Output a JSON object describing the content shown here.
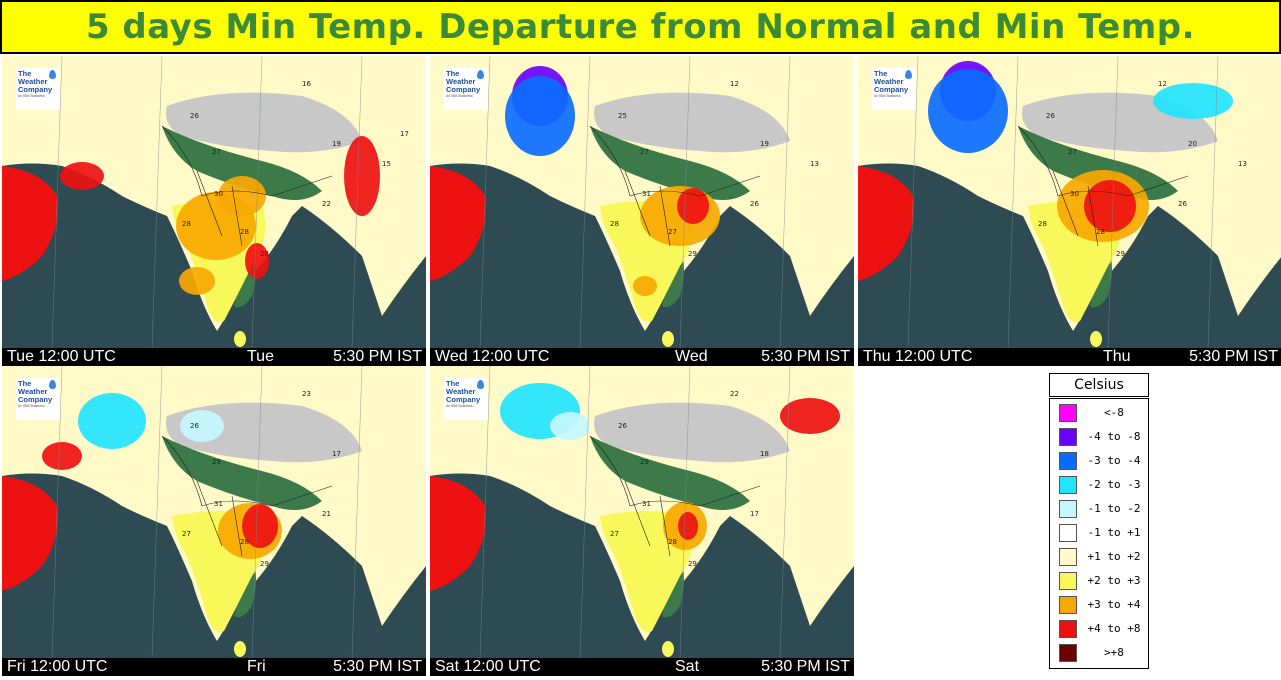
{
  "title": "5 days Min Temp. Departure from Normal and Min Temp.",
  "logo": {
    "line1": "The",
    "line2": "Weather",
    "line3": "Company",
    "sub": "An IBM Business"
  },
  "colors": {
    "title_bg": "#ffff00",
    "title_text": "#3a8a3a",
    "sea": "#2e4a52",
    "land_green": "#3d7a4a",
    "snow": "#c8c8c8"
  },
  "panels": [
    {
      "utc_label": "Tue  12:00 UTC",
      "day_label": "Tue",
      "ist_label": "5:30 PM IST",
      "map_values": [
        "26",
        "27",
        "30",
        "28",
        "28",
        "28",
        "22",
        "19",
        "16",
        "15",
        "17"
      ]
    },
    {
      "utc_label": "Wed 12:00 UTC",
      "day_label": "Wed",
      "ist_label": "5:30 PM IST",
      "map_values": [
        "25",
        "27",
        "31",
        "28",
        "27",
        "29",
        "26",
        "19",
        "12",
        "13"
      ]
    },
    {
      "utc_label": "Thu  12:00 UTC",
      "day_label": "Thu",
      "ist_label": "5:30 PM IST",
      "map_values": [
        "26",
        "27",
        "30",
        "28",
        "28",
        "29",
        "26",
        "20",
        "12",
        "13"
      ]
    },
    {
      "utc_label": "Fri  12:00 UTC",
      "day_label": "Fri",
      "ist_label": "5:30 PM IST",
      "map_values": [
        "26",
        "29",
        "31",
        "27",
        "28",
        "29",
        "21",
        "17",
        "23"
      ]
    },
    {
      "utc_label": "Sat  12:00 UTC",
      "day_label": "Sat",
      "ist_label": "5:30 PM IST",
      "map_values": [
        "26",
        "29",
        "31",
        "27",
        "28",
        "29",
        "17",
        "18",
        "22"
      ]
    }
  ],
  "legend": {
    "title": "Celsius",
    "items": [
      {
        "label": "<-8",
        "color": "#ff00ff"
      },
      {
        "label": "-4 to -8",
        "color": "#6a00ff"
      },
      {
        "label": "-3 to -4",
        "color": "#0a6cff"
      },
      {
        "label": "-2 to -3",
        "color": "#22e4ff"
      },
      {
        "label": "-1 to -2",
        "color": "#c4f7ff"
      },
      {
        "label": "-1 to +1",
        "color": "#ffffff"
      },
      {
        "label": "+1 to +2",
        "color": "#fffac8"
      },
      {
        "label": "+2 to +3",
        "color": "#f8f85a"
      },
      {
        "label": "+3 to +4",
        "color": "#f7a800"
      },
      {
        "label": "+4 to +8",
        "color": "#ee1111"
      },
      {
        "label": ">+8",
        "color": "#6a0000"
      }
    ]
  }
}
